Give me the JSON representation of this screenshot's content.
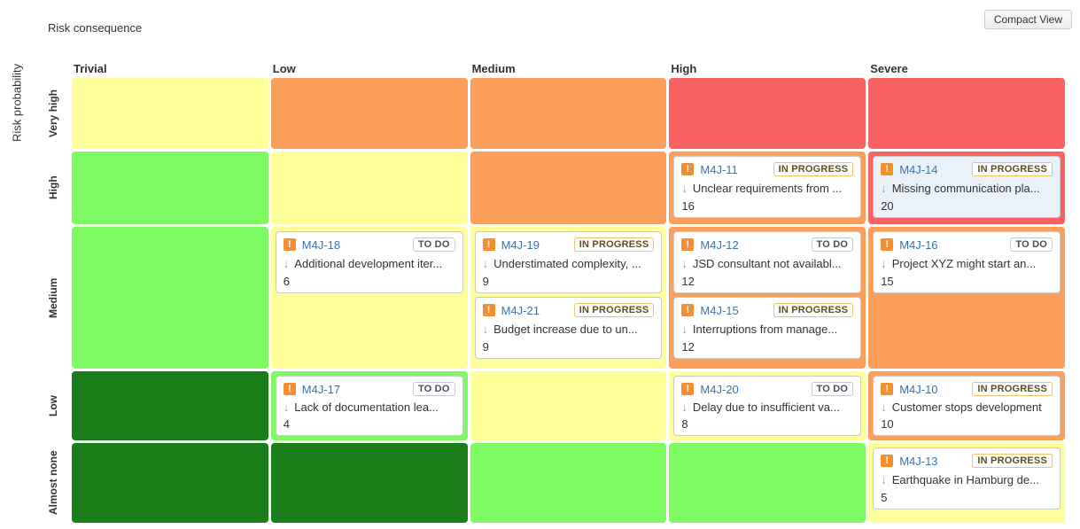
{
  "header": {
    "x_axis_title": "Risk consequence",
    "compact_view_button": "Compact View"
  },
  "y_axis_title": "Risk probability",
  "columns": [
    "Trivial",
    "Low",
    "Medium",
    "High",
    "Severe"
  ],
  "rows": [
    "Very high",
    "High",
    "Medium",
    "Low",
    "Almost none"
  ],
  "palette": {
    "yellow": "#FFFF99",
    "orange": "#FA9E5A",
    "red": "#FA6163",
    "green": "#7EFB63",
    "darkgreen": "#1B7E1B"
  },
  "cell_colors": [
    [
      "yellow",
      "orange",
      "orange",
      "red",
      "red"
    ],
    [
      "green",
      "yellow",
      "orange",
      "orange",
      "red"
    ],
    [
      "green",
      "yellow",
      "yellow",
      "orange",
      "orange"
    ],
    [
      "darkgreen",
      "green",
      "yellow",
      "yellow",
      "orange"
    ],
    [
      "darkgreen",
      "darkgreen",
      "green",
      "green",
      "yellow"
    ]
  ],
  "icons": {
    "priority_exclamation_icon": "!",
    "rank_down_arrow_icon": "↓"
  },
  "cards": [
    {
      "key": "M4J-11",
      "status": "IN PROGRESS",
      "summary": "Unclear requirements from ...",
      "score": "16",
      "row": 1,
      "col": 3,
      "selected": false
    },
    {
      "key": "M4J-14",
      "status": "IN PROGRESS",
      "summary": "Missing communication pla...",
      "score": "20",
      "row": 1,
      "col": 4,
      "selected": true
    },
    {
      "key": "M4J-18",
      "status": "TO DO",
      "summary": "Additional development iter...",
      "score": "6",
      "row": 2,
      "col": 1,
      "selected": false
    },
    {
      "key": "M4J-19",
      "status": "IN PROGRESS",
      "summary": "Understimated complexity, ...",
      "score": "9",
      "row": 2,
      "col": 2,
      "selected": false
    },
    {
      "key": "M4J-21",
      "status": "IN PROGRESS",
      "summary": "Budget increase due to un...",
      "score": "9",
      "row": 2,
      "col": 2,
      "selected": false
    },
    {
      "key": "M4J-12",
      "status": "TO DO",
      "summary": "JSD consultant not availabl...",
      "score": "12",
      "row": 2,
      "col": 3,
      "selected": false
    },
    {
      "key": "M4J-15",
      "status": "IN PROGRESS",
      "summary": "Interruptions from manage...",
      "score": "12",
      "row": 2,
      "col": 3,
      "selected": false
    },
    {
      "key": "M4J-16",
      "status": "TO DO",
      "summary": "Project XYZ might start an...",
      "score": "15",
      "row": 2,
      "col": 4,
      "selected": false
    },
    {
      "key": "M4J-17",
      "status": "TO DO",
      "summary": "Lack of documentation lea...",
      "score": "4",
      "row": 3,
      "col": 1,
      "selected": false
    },
    {
      "key": "M4J-20",
      "status": "TO DO",
      "summary": "Delay due to insufficient va...",
      "score": "8",
      "row": 3,
      "col": 3,
      "selected": false
    },
    {
      "key": "M4J-10",
      "status": "IN PROGRESS",
      "summary": "Customer stops development",
      "score": "10",
      "row": 3,
      "col": 4,
      "selected": false
    },
    {
      "key": "M4J-13",
      "status": "IN PROGRESS",
      "summary": "Earthquake in Hamburg de...",
      "score": "5",
      "row": 4,
      "col": 4,
      "selected": false
    }
  ]
}
